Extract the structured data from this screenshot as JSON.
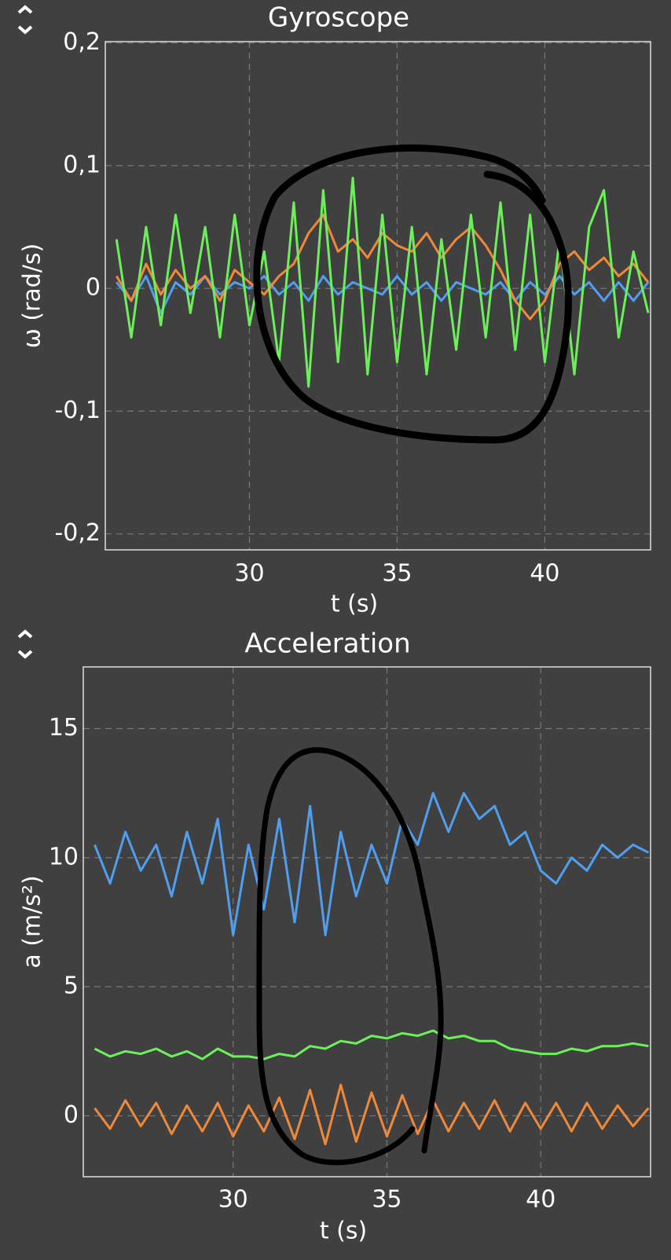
{
  "chart_data": [
    {
      "type": "line",
      "title": "Gyroscope",
      "xlabel": "t (s)",
      "ylabel": "ω (rad/s)",
      "x": [
        25.5,
        26,
        26.5,
        27,
        27.5,
        28,
        28.5,
        29,
        29.5,
        30,
        30.5,
        31,
        31.5,
        32,
        32.5,
        33,
        33.5,
        34,
        34.5,
        35,
        35.5,
        36,
        36.5,
        37,
        37.5,
        38,
        38.5,
        39,
        39.5,
        40,
        40.5,
        41,
        41.5,
        42,
        42.5,
        43,
        43.5
      ],
      "series": [
        {
          "color": "#4f9ef0",
          "values": [
            0.005,
            -0.01,
            0.01,
            -0.02,
            0.005,
            -0.005,
            0.01,
            -0.005,
            0.005,
            0,
            0.01,
            -0.005,
            0.005,
            -0.01,
            0.01,
            -0.005,
            0.005,
            0,
            -0.005,
            0.01,
            -0.005,
            0.005,
            -0.01,
            0.005,
            0,
            -0.005,
            0.005,
            -0.01,
            0.005,
            -0.005,
            0.01,
            -0.005,
            0.005,
            -0.01,
            0.005,
            -0.01,
            0.005
          ]
        },
        {
          "color": "#f0883a",
          "values": [
            0.01,
            -0.01,
            0.02,
            -0.005,
            0.015,
            0,
            0.01,
            -0.01,
            0.015,
            0.005,
            -0.005,
            0.01,
            0.02,
            0.045,
            0.06,
            0.03,
            0.04,
            0.025,
            0.045,
            0.035,
            0.03,
            0.045,
            0.025,
            0.04,
            0.05,
            0.035,
            0.015,
            -0.01,
            -0.025,
            -0.01,
            0.02,
            0.03,
            0.015,
            0.025,
            0.01,
            0.02,
            0.005
          ]
        },
        {
          "color": "#6cf05a",
          "values": [
            0.04,
            -0.04,
            0.05,
            -0.03,
            0.06,
            -0.02,
            0.05,
            -0.04,
            0.06,
            -0.03,
            0.03,
            -0.06,
            0.07,
            -0.08,
            0.08,
            -0.06,
            0.09,
            -0.07,
            0.06,
            -0.06,
            0.05,
            -0.07,
            0.04,
            -0.05,
            0.06,
            -0.04,
            0.07,
            -0.05,
            0.06,
            -0.06,
            0.04,
            -0.07,
            0.05,
            0.08,
            -0.04,
            0.03,
            -0.02
          ]
        }
      ],
      "xlim": [
        25.12,
        43.58
      ],
      "ylim": [
        -0.213,
        0.201
      ],
      "xticks": [
        30,
        35,
        40
      ],
      "yticks": [
        {
          "value": 0.2,
          "label": "0,2"
        },
        {
          "value": 0.1,
          "label": "0,1"
        },
        0,
        {
          "value": -0.1,
          "label": "-0,1"
        },
        {
          "value": -0.2,
          "label": "-0,2"
        }
      ],
      "grid": true
    },
    {
      "type": "line",
      "title": "Acceleration",
      "xlabel": "t (s)",
      "ylabel": "a (m/s²)",
      "x": [
        25.5,
        26,
        26.5,
        27,
        27.5,
        28,
        28.5,
        29,
        29.5,
        30,
        30.5,
        31,
        31.5,
        32,
        32.5,
        33,
        33.5,
        34,
        34.5,
        35,
        35.5,
        36,
        36.5,
        37,
        37.5,
        38,
        38.5,
        39,
        39.5,
        40,
        40.5,
        41,
        41.5,
        42,
        42.5,
        43,
        43.5
      ],
      "series": [
        {
          "color": "#4f9ef0",
          "values": [
            10.5,
            9,
            11,
            9.5,
            10.5,
            8.5,
            11,
            9,
            11.5,
            7,
            10.5,
            8,
            11.5,
            7.5,
            12,
            7,
            11,
            8.5,
            10.5,
            9,
            11.5,
            10.5,
            12.5,
            11,
            12.5,
            11.5,
            12,
            10.5,
            11,
            9.5,
            9,
            10,
            9.5,
            10.5,
            10,
            10.5,
            10.2
          ]
        },
        {
          "color": "#6cf05a",
          "values": [
            2.6,
            2.3,
            2.5,
            2.4,
            2.6,
            2.3,
            2.5,
            2.2,
            2.6,
            2.3,
            2.3,
            2.2,
            2.4,
            2.3,
            2.7,
            2.6,
            2.9,
            2.8,
            3.1,
            3.0,
            3.2,
            3.1,
            3.3,
            3.0,
            3.1,
            2.9,
            2.9,
            2.6,
            2.5,
            2.4,
            2.4,
            2.6,
            2.5,
            2.7,
            2.7,
            2.8,
            2.7
          ]
        },
        {
          "color": "#f0883a",
          "values": [
            0.3,
            -0.5,
            0.6,
            -0.4,
            0.5,
            -0.7,
            0.4,
            -0.6,
            0.5,
            -0.8,
            0.4,
            -0.6,
            0.7,
            -0.9,
            1.0,
            -1.1,
            1.2,
            -1.0,
            0.9,
            -0.8,
            0.8,
            -0.7,
            0.6,
            -0.6,
            0.5,
            -0.5,
            0.6,
            -0.6,
            0.5,
            -0.5,
            0.5,
            -0.6,
            0.5,
            -0.5,
            0.4,
            -0.4,
            0.3
          ]
        }
      ],
      "xlim": [
        25.13,
        43.57
      ],
      "ylim": [
        -2.36,
        17.39
      ],
      "xticks": [
        30,
        35,
        40
      ],
      "yticks": [
        15,
        10,
        5,
        0
      ],
      "grid": true
    }
  ]
}
